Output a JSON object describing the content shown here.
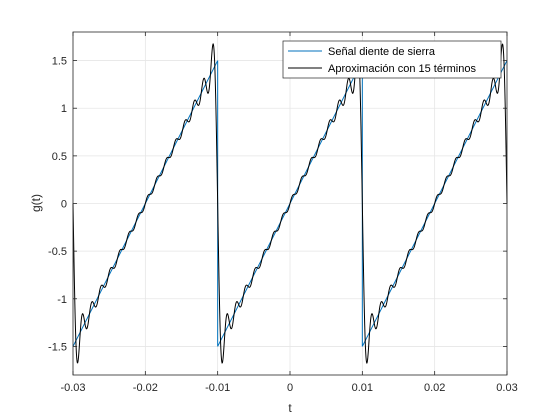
{
  "chart_data": {
    "type": "line",
    "xlabel": "t",
    "ylabel": "g(t)",
    "xlim": [
      -0.03,
      0.03
    ],
    "ylim": [
      -1.8,
      1.8
    ],
    "x_ticks": [
      -0.03,
      -0.02,
      -0.01,
      0,
      0.01,
      0.02,
      0.03
    ],
    "x_tick_labels": [
      "-0.03",
      "-0.02",
      "-0.01",
      "0",
      "0.01",
      "0.02",
      "0.03"
    ],
    "y_ticks": [
      -1.5,
      -1,
      -0.5,
      0,
      0.5,
      1,
      1.5
    ],
    "y_tick_labels": [
      "-1.5",
      "-1",
      "-0.5",
      "0",
      "0.5",
      "1",
      "1.5"
    ],
    "grid": true,
    "legend_position": "top-right",
    "series": [
      {
        "name": "Señal diente de sierra",
        "color": "#0072BD",
        "function": "sawtooth",
        "amplitude": 1.5,
        "period": 0.02,
        "discontinuities_at": [
          -0.01,
          0.01
        ]
      },
      {
        "name": "Aproximación con 15 términos",
        "color": "#000000",
        "function": "fourier_sawtooth",
        "amplitude": 1.5,
        "period": 0.02,
        "terms": 15
      }
    ]
  }
}
